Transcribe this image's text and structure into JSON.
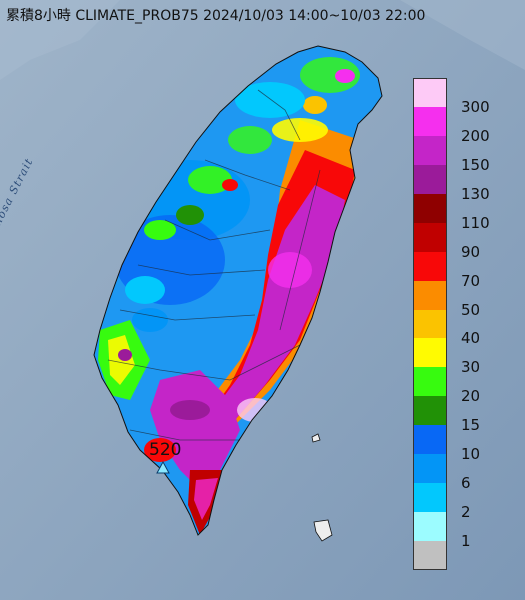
{
  "title": "累積8小時 CLIMATE_PROB75 2024/10/03 14:00~10/03 22:00",
  "strait_label": "Formosa Strait",
  "peak": {
    "value": "520"
  },
  "legend": {
    "labels": [
      "300",
      "200",
      "150",
      "130",
      "110",
      "90",
      "70",
      "50",
      "40",
      "30",
      "20",
      "15",
      "10",
      "6",
      "2",
      "1"
    ],
    "colors": [
      "#fdcaf6",
      "#f52fee",
      "#c425c8",
      "#9b1b9a",
      "#8f0000",
      "#c00000",
      "#f80808",
      "#fb8c00",
      "#fbc300",
      "#fffb01",
      "#37fb0f",
      "#219106",
      "#0868f5",
      "#0395f6",
      "#02c8fd",
      "#9cfcff",
      "#c0c0c0"
    ]
  },
  "colors": {
    "sea": "#8aa3bd",
    "land_base": "#1e98f2"
  }
}
